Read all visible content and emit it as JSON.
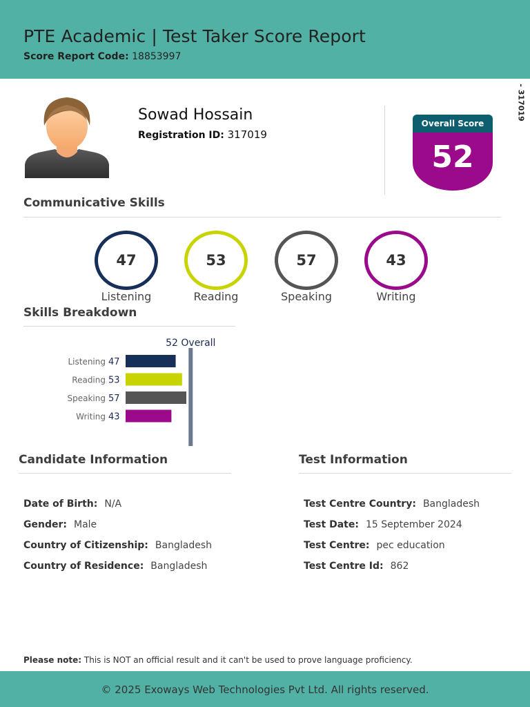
{
  "header": {
    "title": "PTE Academic | Test Taker Score Report",
    "code_label": "Score Report Code:",
    "code_value": "18853997"
  },
  "side_id": "- 317019",
  "candidate": {
    "name": "Sowad Hossain",
    "reg_label": "Registration ID:",
    "reg_value": "317019"
  },
  "overall": {
    "caption": "Overall Score",
    "score": "52"
  },
  "communicative": {
    "title": "Communicative Skills",
    "skills": [
      {
        "label": "Listening",
        "score": "47",
        "color": "#17305a"
      },
      {
        "label": "Reading",
        "score": "53",
        "color": "#c8d400"
      },
      {
        "label": "Speaking",
        "score": "57",
        "color": "#555555"
      },
      {
        "label": "Writing",
        "score": "43",
        "color": "#9b0a8a"
      }
    ]
  },
  "breakdown": {
    "title": "Skills Breakdown",
    "overall_marker": "52 Overall",
    "overall_value": 52,
    "bars": [
      {
        "label": "Listening",
        "value": 47,
        "color": "#17305a"
      },
      {
        "label": "Reading",
        "value": 53,
        "color": "#c8d400"
      },
      {
        "label": "Speaking",
        "value": 57,
        "color": "#555555"
      },
      {
        "label": "Writing",
        "value": 43,
        "color": "#9b0a8a"
      }
    ]
  },
  "candidate_info": {
    "title": "Candidate Information",
    "rows": [
      {
        "label": "Date of Birth:",
        "value": "N/A"
      },
      {
        "label": "Gender:",
        "value": "Male"
      },
      {
        "label": "Country of Citizenship:",
        "value": "Bangladesh"
      },
      {
        "label": "Country of Residence:",
        "value": "Bangladesh"
      }
    ]
  },
  "test_info": {
    "title": "Test Information",
    "rows": [
      {
        "label": "Test Centre Country:",
        "value": "Bangladesh"
      },
      {
        "label": "Test Date:",
        "value": "15 September 2024"
      },
      {
        "label": "Test Centre:",
        "value": "pec education"
      },
      {
        "label": "Test Centre Id:",
        "value": "862"
      }
    ]
  },
  "note": {
    "label": "Please note:",
    "text": "This is NOT an official result and it can't be used to prove language proficiency."
  },
  "footer": "© 2025 Exoways Web Technologies Pvt Ltd. All rights reserved."
}
